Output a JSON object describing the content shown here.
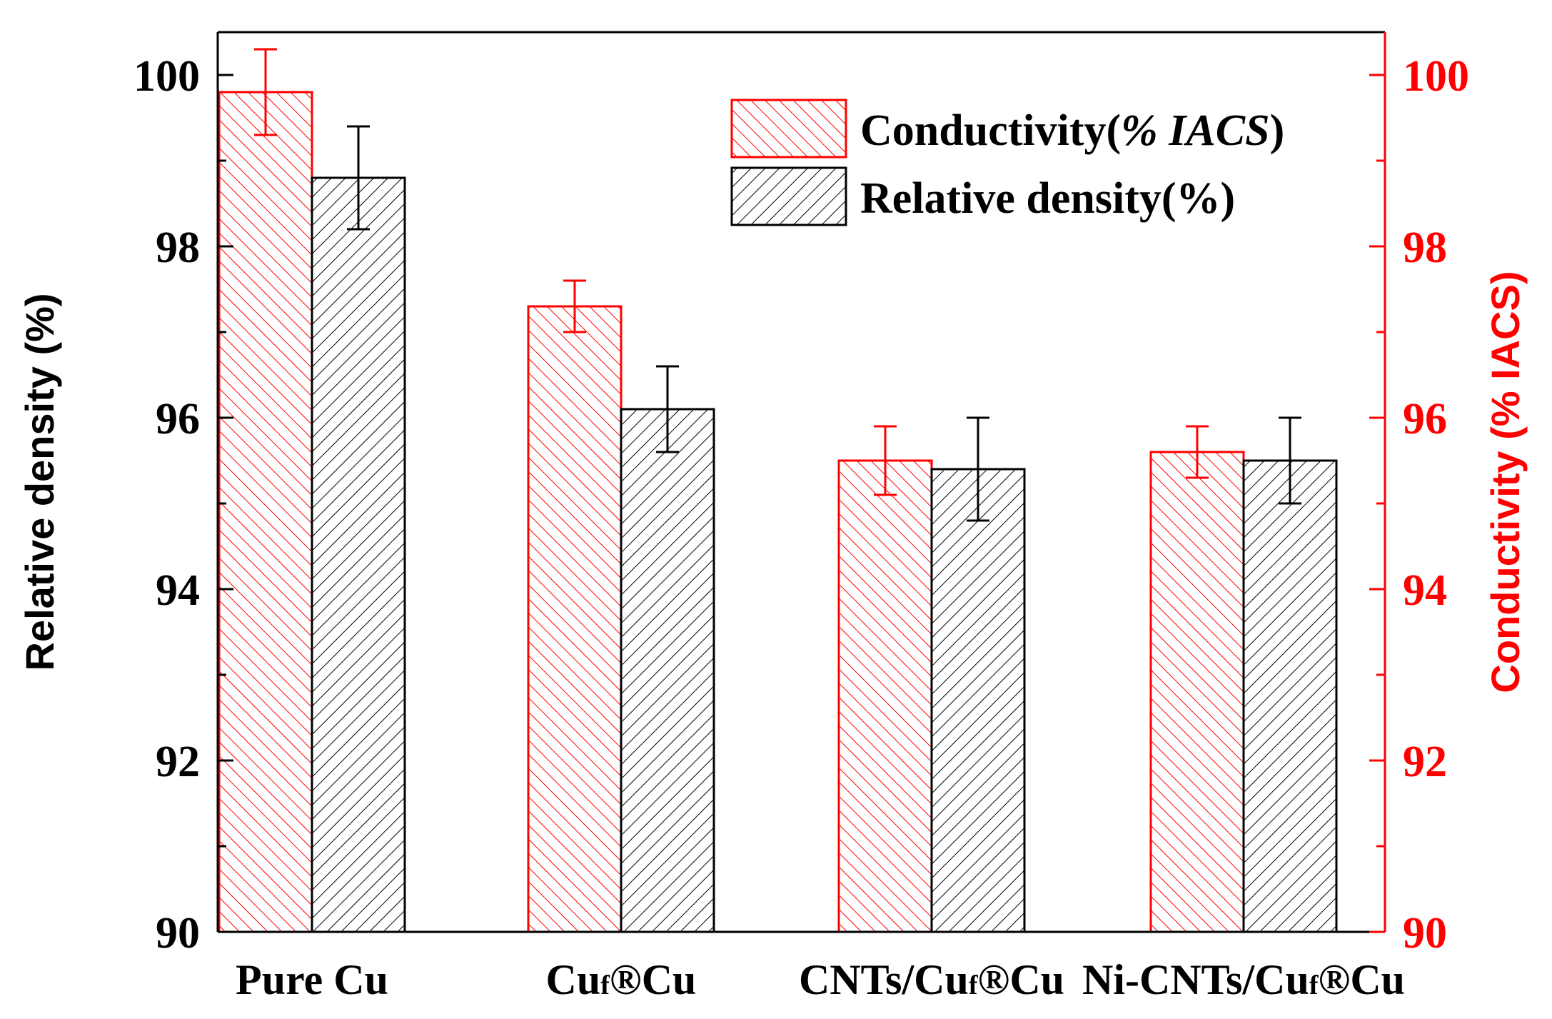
{
  "chart_data": {
    "type": "bar",
    "categories": [
      "Pure Cu",
      "Cuf®Cu",
      "CNTs/Cuf®Cu",
      "Ni-CNTs/Cuf®Cu"
    ],
    "category_parts": [
      {
        "pre": "Pure Cu",
        "sub": "",
        "post": ""
      },
      {
        "pre": "Cu",
        "sub": "f",
        "post": "®Cu"
      },
      {
        "pre": "CNTs/Cu",
        "sub": "f",
        "post": "®Cu"
      },
      {
        "pre": "Ni-CNTs/Cu",
        "sub": "f",
        "post": "®Cu"
      }
    ],
    "series": [
      {
        "name": "Conductivity(% IACS)",
        "name_plain": "Conductivity(",
        "name_italic": "% IACS",
        "name_end": ")",
        "axis": "right",
        "color": "#ff0000",
        "hatch": "forward",
        "values": [
          99.8,
          97.3,
          95.5,
          95.6
        ],
        "errors": [
          0.5,
          0.3,
          0.4,
          0.3
        ]
      },
      {
        "name": "Relative density(%)",
        "name_plain": "Relative density(%)",
        "name_italic": "",
        "name_end": "",
        "axis": "left",
        "color": "#000000",
        "hatch": "backward",
        "values": [
          98.8,
          96.1,
          95.4,
          95.5
        ],
        "errors": [
          0.6,
          0.5,
          0.6,
          0.5
        ]
      }
    ],
    "ylabel_left": "Relative density (%)",
    "ylabel_right": "Conductivity (% IACS)",
    "ylim_left": [
      90,
      100.5
    ],
    "ylim_right": [
      90,
      100.5
    ],
    "yticks_left": [
      "90",
      "92",
      "94",
      "96",
      "98",
      "100"
    ],
    "yticks_right": [
      "90",
      "92",
      "94",
      "96",
      "98",
      "100"
    ],
    "legend_position": "top-right",
    "grid": false,
    "left_axis_color": "#000000",
    "right_axis_color": "#ff0000"
  }
}
